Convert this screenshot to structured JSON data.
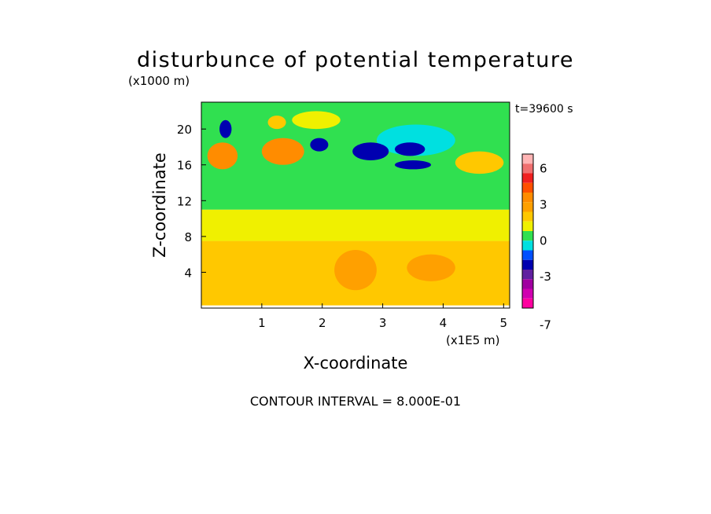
{
  "chart_data": {
    "type": "heatmap",
    "title": "disturbunce of potential temperature",
    "y_unit_label": "(x1000 m)",
    "x_unit_label": "(x1E5 m)",
    "xlabel": "X-coordinate",
    "ylabel": "Z-coordinate",
    "time_label": "t=39600 s",
    "footer": "CONTOUR INTERVAL = 8.000E-01",
    "x_ticks": [
      "1",
      "2",
      "3",
      "4",
      "5"
    ],
    "x_tick_values": [
      1,
      2,
      3,
      4,
      5
    ],
    "y_ticks": [
      "4",
      "8",
      "12",
      "16",
      "20"
    ],
    "y_tick_values": [
      4,
      8,
      12,
      16,
      20
    ],
    "xlim": [
      0,
      5.1
    ],
    "ylim": [
      0,
      23
    ],
    "colorbar": {
      "tick_labels": [
        "6",
        "3",
        "0",
        "-3",
        "-7"
      ],
      "tick_values": [
        6,
        3,
        0,
        -3,
        -7
      ],
      "levels": [
        {
          "lo": 6.4,
          "hi": 7.2,
          "color": "#ffb4b4"
        },
        {
          "lo": 5.6,
          "hi": 6.4,
          "color": "#f07070"
        },
        {
          "lo": 4.8,
          "hi": 5.6,
          "color": "#f02020"
        },
        {
          "lo": 4.0,
          "hi": 4.8,
          "color": "#ff5000"
        },
        {
          "lo": 3.2,
          "hi": 4.0,
          "color": "#ff8c00"
        },
        {
          "lo": 2.4,
          "hi": 3.2,
          "color": "#ffa000"
        },
        {
          "lo": 1.6,
          "hi": 2.4,
          "color": "#ffc800"
        },
        {
          "lo": 0.8,
          "hi": 1.6,
          "color": "#f0f000"
        },
        {
          "lo": 0.0,
          "hi": 0.8,
          "color": "#30e050"
        },
        {
          "lo": -0.8,
          "hi": 0.0,
          "color": "#00e0e0"
        },
        {
          "lo": -1.6,
          "hi": -0.8,
          "color": "#0050ff"
        },
        {
          "lo": -2.4,
          "hi": -1.6,
          "color": "#0000b0"
        },
        {
          "lo": -3.2,
          "hi": -2.4,
          "color": "#6020a0"
        },
        {
          "lo": -4.0,
          "hi": -3.2,
          "color": "#a000a0"
        },
        {
          "lo": -4.8,
          "hi": -4.0,
          "color": "#d000b0"
        },
        {
          "lo": -5.6,
          "hi": -4.8,
          "color": "#ff00a0"
        }
      ]
    },
    "field_regions": [
      {
        "x": [
          0.0,
          5.1
        ],
        "z": [
          0.3,
          7.5
        ],
        "value": 2.0
      },
      {
        "x": [
          0.0,
          5.1
        ],
        "z": [
          7.5,
          11.0
        ],
        "value": 1.2
      },
      {
        "x": [
          0.0,
          5.1
        ],
        "z": [
          11.0,
          23.0
        ],
        "value": 0.4
      },
      {
        "x": [
          0.1,
          0.6
        ],
        "z": [
          15.5,
          18.5
        ],
        "value": 3.5
      },
      {
        "x": [
          1.0,
          1.7
        ],
        "z": [
          16.0,
          19.0
        ],
        "value": 3.5
      },
      {
        "x": [
          0.3,
          0.5
        ],
        "z": [
          19.0,
          21.0
        ],
        "value": -2.0
      },
      {
        "x": [
          1.1,
          1.4
        ],
        "z": [
          20.0,
          21.5
        ],
        "value": 2.0
      },
      {
        "x": [
          1.5,
          2.3
        ],
        "z": [
          20.0,
          22.0
        ],
        "value": 1.2
      },
      {
        "x": [
          2.9,
          4.2
        ],
        "z": [
          17.0,
          20.5
        ],
        "value": -0.4
      },
      {
        "x": [
          1.8,
          2.1
        ],
        "z": [
          17.5,
          19.0
        ],
        "value": -2.0
      },
      {
        "x": [
          2.5,
          3.1
        ],
        "z": [
          16.5,
          18.5
        ],
        "value": -2.0
      },
      {
        "x": [
          3.2,
          3.7
        ],
        "z": [
          17.0,
          18.5
        ],
        "value": -2.0
      },
      {
        "x": [
          3.2,
          3.8
        ],
        "z": [
          15.5,
          16.5
        ],
        "value": -2.0
      },
      {
        "x": [
          4.2,
          5.0
        ],
        "z": [
          15.0,
          17.5
        ],
        "value": 2.0
      },
      {
        "x": [
          2.2,
          2.9
        ],
        "z": [
          2.0,
          6.5
        ],
        "value": 2.8
      },
      {
        "x": [
          3.4,
          4.2
        ],
        "z": [
          3.0,
          6.0
        ],
        "value": 2.8
      }
    ]
  }
}
